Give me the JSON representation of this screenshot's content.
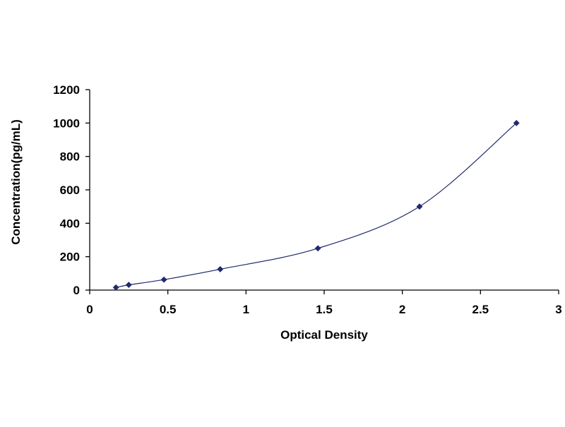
{
  "chart_data": {
    "type": "scatter",
    "xlabel": "Optical Density",
    "ylabel": "Concentration(pg/mL)",
    "xlim": [
      0,
      3
    ],
    "ylim": [
      0,
      1200
    ],
    "x_ticks": [
      0,
      0.5,
      1,
      1.5,
      2,
      2.5,
      3
    ],
    "x_tick_labels": [
      "0",
      "0.5",
      "1",
      "1.5",
      "2",
      "2.5",
      "3"
    ],
    "y_ticks": [
      0,
      200,
      400,
      600,
      800,
      1000,
      1200
    ],
    "y_tick_labels": [
      "0",
      "200",
      "400",
      "600",
      "800",
      "1000",
      "1200"
    ],
    "grid": false,
    "legend": false,
    "series": [
      {
        "marker": "diamond",
        "smooth_line": true,
        "points": [
          {
            "x": 0.168,
            "y": 15.6
          },
          {
            "x": 0.25,
            "y": 31.2
          },
          {
            "x": 0.475,
            "y": 62.5
          },
          {
            "x": 0.835,
            "y": 125
          },
          {
            "x": 1.46,
            "y": 250
          },
          {
            "x": 2.11,
            "y": 500
          },
          {
            "x": 2.73,
            "y": 1000
          }
        ]
      }
    ],
    "colors": {
      "marker": "#1f2a6e",
      "line": "#1f2a6e",
      "axis": "#000000"
    }
  }
}
